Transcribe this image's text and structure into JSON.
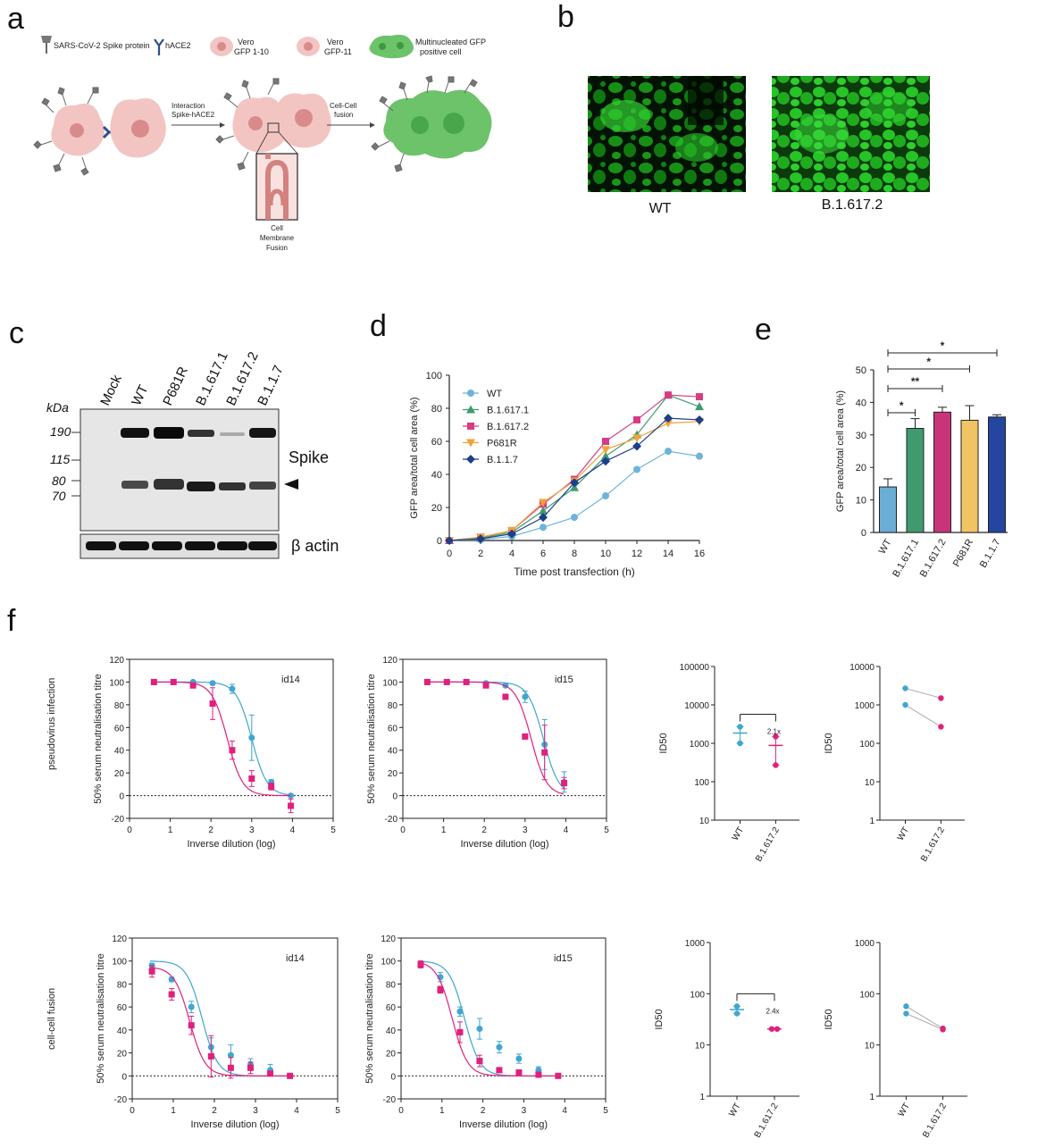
{
  "panels": {
    "a": "a",
    "b": "b",
    "c": "c",
    "d": "d",
    "e": "e",
    "f": "f"
  },
  "panel_a": {
    "legend": {
      "spike": "SARS-CoV-2 Spike protein",
      "hace2": "hACE2",
      "vero1_line1": "Vero",
      "vero1_line2": "GFP 1-10",
      "vero2_line1": "Vero",
      "vero2_line2": "GFP-11",
      "multi_line1": "Multinucleated GFP",
      "multi_line2": "positive cell"
    },
    "step1_line1": "Interaction",
    "step1_line2": "Spike-hACE2",
    "step2_line1": "Cell-Cell",
    "step2_line2": "fusion",
    "zoom_line1": "Cell",
    "zoom_line2": "Membrane",
    "zoom_line3": "Fusion",
    "colors": {
      "cell": "#f3c5c2",
      "nucleus": "#d98b8b",
      "fused": "#6cc36a",
      "spike": "#777777",
      "ace2": "#2b4f8f"
    }
  },
  "panel_b": {
    "labels": [
      "WT",
      "B.1.617.2"
    ]
  },
  "panel_c": {
    "lanes": [
      "Mock",
      "WT",
      "P681R",
      "B.1.617.1",
      "B.1.617.2",
      "B.1.1.7"
    ],
    "kda_label": "kDa",
    "markers": [
      "190",
      "115",
      "80",
      "70"
    ],
    "spike_label": "Spike",
    "actin_label": "β actin",
    "arrow_icon": "arrowhead-icon"
  },
  "chart_data": [
    {
      "type": "line",
      "panel": "d",
      "xlabel": "Time post transfection (h)",
      "ylabel": "GFP area/total cell area (%)",
      "x": [
        0,
        2,
        4,
        6,
        8,
        10,
        12,
        14,
        16
      ],
      "xlim": [
        0,
        16
      ],
      "ylim": [
        0,
        100
      ],
      "xticks": [
        0,
        2,
        4,
        6,
        8,
        10,
        12,
        14,
        16
      ],
      "yticks": [
        0,
        20,
        40,
        60,
        80,
        100
      ],
      "legend_position": "top-left",
      "series": [
        {
          "name": "WT",
          "color": "#6cb4d9",
          "marker": "circle",
          "values": [
            0,
            0.5,
            2.5,
            8,
            14,
            27,
            43,
            54,
            51
          ]
        },
        {
          "name": "B.1.617.1",
          "color": "#3f9b6e",
          "marker": "triangle",
          "values": [
            0,
            1.5,
            5,
            18,
            32,
            51,
            64,
            88,
            81
          ]
        },
        {
          "name": "B.1.617.2",
          "color": "#d63c84",
          "marker": "square",
          "values": [
            0,
            2,
            6,
            22,
            37,
            60,
            73,
            88,
            87
          ]
        },
        {
          "name": "P681R",
          "color": "#f2a236",
          "marker": "triangle-down",
          "values": [
            0,
            2,
            6,
            23,
            36,
            55,
            62,
            71,
            72
          ]
        },
        {
          "name": "B.1.1.7",
          "color": "#1c3f8a",
          "marker": "diamond",
          "values": [
            0,
            1,
            4,
            14,
            35,
            48,
            57,
            74,
            73
          ]
        }
      ]
    },
    {
      "type": "bar",
      "panel": "e",
      "ylabel": "GFP area/total cell area (%)",
      "categories": [
        "WT",
        "B.1.617.1",
        "B.1.617.2",
        "P681R",
        "B.1.1.7"
      ],
      "values": [
        14,
        32,
        37,
        34.5,
        35.5
      ],
      "errors": [
        2.5,
        3,
        1.5,
        4.5,
        0.7
      ],
      "colors": [
        "#6aaed6",
        "#3f9b6e",
        "#c93478",
        "#f0c463",
        "#2446a0"
      ],
      "ylim": [
        0,
        50
      ],
      "yticks": [
        0,
        10,
        20,
        30,
        40,
        50
      ],
      "significance": [
        {
          "from": 0,
          "to": 1,
          "label": "*"
        },
        {
          "from": 0,
          "to": 2,
          "label": "**"
        },
        {
          "from": 0,
          "to": 3,
          "label": "*"
        },
        {
          "from": 0,
          "to": 4,
          "label": "*"
        }
      ]
    },
    {
      "type": "line",
      "panel": "f-pv-id14",
      "annotation": "id14",
      "xlabel": "Inverse dilution (log)",
      "ylabel": "50% serum neutralisation titre",
      "xlim": [
        0,
        5
      ],
      "ylim": [
        -20,
        120
      ],
      "xticks": [
        0,
        1,
        2,
        3,
        4,
        5
      ],
      "yticks": [
        -20,
        0,
        20,
        40,
        60,
        80,
        100,
        120
      ],
      "series": [
        {
          "name": "WT",
          "color": "#3fa6d2",
          "marker": "circle",
          "x": [
            0.6,
            1.08,
            1.56,
            2.04,
            2.52,
            3.0,
            3.48,
            3.96
          ],
          "values": [
            100,
            100,
            100,
            99,
            94,
            51,
            12,
            0
          ],
          "errors": [
            1,
            1,
            1,
            1,
            4,
            20,
            2,
            1
          ],
          "ic50": 3.0
        },
        {
          "name": "B.1.617.2",
          "color": "#e0207c",
          "marker": "square",
          "x": [
            0.6,
            1.08,
            1.56,
            2.04,
            2.52,
            3.0,
            3.48,
            3.96
          ],
          "values": [
            100,
            100,
            97,
            81,
            40,
            15,
            8,
            -9
          ],
          "errors": [
            1,
            1,
            2,
            14,
            8,
            7,
            3,
            6
          ],
          "ic50": 2.4
        }
      ]
    },
    {
      "type": "line",
      "panel": "f-pv-id15",
      "annotation": "id15",
      "xlabel": "Inverse dilution (log)",
      "ylabel": "50% serum neutralisation titre",
      "xlim": [
        0,
        5
      ],
      "ylim": [
        -20,
        120
      ],
      "xticks": [
        0,
        1,
        2,
        3,
        4,
        5
      ],
      "yticks": [
        -20,
        0,
        20,
        40,
        60,
        80,
        100,
        120
      ],
      "series": [
        {
          "name": "WT",
          "color": "#3fa6d2",
          "marker": "circle",
          "x": [
            0.6,
            1.08,
            1.56,
            2.04,
            2.52,
            3.0,
            3.48,
            3.96
          ],
          "values": [
            100,
            100,
            100,
            99,
            97,
            87,
            45,
            12
          ],
          "errors": [
            1,
            1,
            1,
            1,
            1,
            5,
            22,
            9
          ],
          "ic50": 3.45
        },
        {
          "name": "B.1.617.2",
          "color": "#e0207c",
          "marker": "square",
          "x": [
            0.6,
            1.08,
            1.56,
            2.04,
            2.52,
            3.0,
            3.48,
            3.96
          ],
          "values": [
            100,
            100,
            100,
            97,
            87,
            52,
            38,
            11
          ],
          "errors": [
            1,
            1,
            1,
            1,
            1,
            2,
            24,
            5
          ],
          "ic50": 3.15
        }
      ]
    },
    {
      "type": "scatter",
      "panel": "f-pv-id50-mean",
      "ylabel": "ID50",
      "scale": "log",
      "ylim": [
        10,
        100000
      ],
      "yticks": [
        "10",
        "100",
        "1000",
        "10000",
        "100000"
      ],
      "categories": [
        "WT",
        "B.1.617.2"
      ],
      "fold_label": "2.1x",
      "series": [
        {
          "name": "WT",
          "color": "#3fa6d2",
          "values": [
            2700,
            1000
          ],
          "mean": 1850
        },
        {
          "name": "B.1.617.2",
          "color": "#e0207c",
          "values": [
            1500,
            270
          ],
          "mean": 880
        }
      ]
    },
    {
      "type": "scatter",
      "panel": "f-pv-id50-paired",
      "ylabel": "ID50",
      "scale": "log",
      "ylim": [
        1,
        10000
      ],
      "yticks": [
        "1",
        "10",
        "100",
        "1000",
        "10000"
      ],
      "categories": [
        "WT",
        "B.1.617.2"
      ],
      "series": [
        {
          "name": "WT",
          "color": "#3fa6d2",
          "values": [
            2700,
            1000
          ]
        },
        {
          "name": "B.1.617.2",
          "color": "#e0207c",
          "values": [
            1500,
            270
          ]
        }
      ]
    },
    {
      "type": "line",
      "panel": "f-cc-id14",
      "annotation": "id14",
      "xlabel": "Inverse dilution (log)",
      "ylabel": "50% serum neutralisation titre",
      "xlim": [
        0,
        5
      ],
      "ylim": [
        -20,
        120
      ],
      "xticks": [
        0,
        1,
        2,
        3,
        4,
        5
      ],
      "yticks": [
        -20,
        0,
        20,
        40,
        60,
        80,
        100,
        120
      ],
      "series": [
        {
          "name": "WT",
          "color": "#3fa6d2",
          "marker": "circle",
          "x": [
            0.48,
            0.96,
            1.44,
            1.92,
            2.4,
            2.88,
            3.36,
            3.84
          ],
          "values": [
            96,
            84,
            60,
            25,
            18,
            10,
            5,
            0
          ],
          "errors": [
            2,
            2,
            5,
            8,
            9,
            5,
            5,
            1
          ],
          "ic50": 1.7
        },
        {
          "name": "B.1.617.2",
          "color": "#e0207c",
          "marker": "square",
          "x": [
            0.48,
            0.96,
            1.44,
            1.92,
            2.4,
            2.88,
            3.36,
            3.84
          ],
          "values": [
            91,
            71,
            44,
            17,
            7,
            7,
            2,
            0
          ],
          "errors": [
            5,
            5,
            8,
            18,
            9,
            5,
            2,
            1
          ],
          "ic50": 1.4
        }
      ]
    },
    {
      "type": "line",
      "panel": "f-cc-id15",
      "annotation": "id15",
      "xlabel": "Inverse dilution (log)",
      "ylabel": "50% serum neutralisation titre",
      "xlim": [
        0,
        5
      ],
      "ylim": [
        -20,
        120
      ],
      "xticks": [
        0,
        1,
        2,
        3,
        4,
        5
      ],
      "yticks": [
        -20,
        0,
        20,
        40,
        60,
        80,
        100,
        120
      ],
      "series": [
        {
          "name": "WT",
          "color": "#3fa6d2",
          "marker": "circle",
          "x": [
            0.48,
            0.96,
            1.44,
            1.92,
            2.4,
            2.88,
            3.36,
            3.84
          ],
          "values": [
            98,
            86,
            56,
            41,
            25,
            15,
            5,
            0
          ],
          "errors": [
            2,
            4,
            4,
            9,
            5,
            4,
            3,
            1
          ],
          "ic50": 1.55
        },
        {
          "name": "B.1.617.2",
          "color": "#e0207c",
          "marker": "square",
          "x": [
            0.48,
            0.96,
            1.44,
            1.92,
            2.4,
            2.88,
            3.36,
            3.84
          ],
          "values": [
            97,
            75,
            38,
            13,
            5,
            3,
            1,
            0
          ],
          "errors": [
            3,
            3,
            9,
            5,
            2,
            1,
            1,
            1
          ],
          "ic50": 1.25
        }
      ]
    },
    {
      "type": "scatter",
      "panel": "f-cc-id50-mean",
      "ylabel": "ID50",
      "scale": "log",
      "ylim": [
        1,
        1000
      ],
      "yticks": [
        "1",
        "10",
        "100",
        "1000"
      ],
      "categories": [
        "WT",
        "B.1.617.2"
      ],
      "fold_label": "2.4x",
      "series": [
        {
          "name": "WT",
          "color": "#3fa6d2",
          "values": [
            57,
            41
          ],
          "mean": 49
        },
        {
          "name": "B.1.617.2",
          "color": "#e0207c",
          "values": [
            20.5,
            20.5
          ],
          "mean": 20.5
        }
      ]
    },
    {
      "type": "scatter",
      "panel": "f-cc-id50-paired",
      "ylabel": "ID50",
      "scale": "log",
      "ylim": [
        1,
        1000
      ],
      "yticks": [
        "1",
        "10",
        "100",
        "1000"
      ],
      "categories": [
        "WT",
        "B.1.617.2"
      ],
      "series": [
        {
          "name": "WT",
          "color": "#3fa6d2",
          "values": [
            57,
            41
          ]
        },
        {
          "name": "B.1.617.2",
          "color": "#e0207c",
          "values": [
            21,
            20
          ]
        }
      ]
    }
  ],
  "row_labels": {
    "pseudovirus": "pseudovirus infection",
    "fusion": "cell-cell fusion"
  }
}
